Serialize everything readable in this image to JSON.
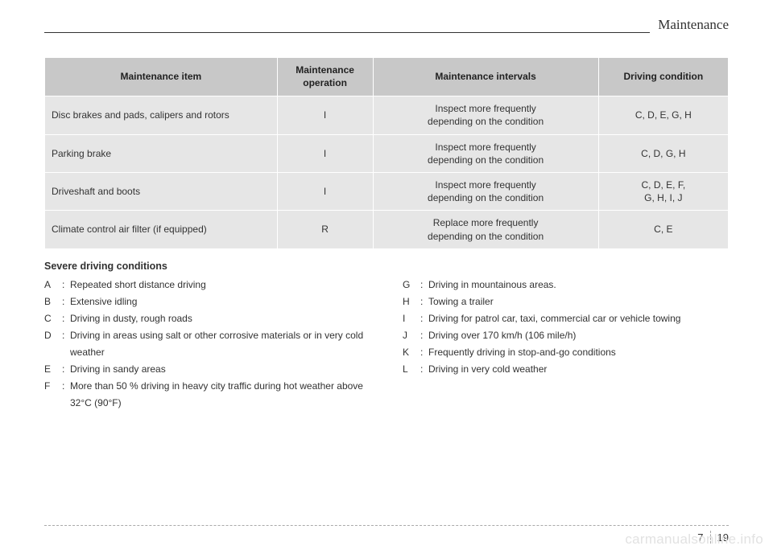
{
  "section_title": "Maintenance",
  "table": {
    "headers": {
      "item": "Maintenance item",
      "operation": "Maintenance\noperation",
      "intervals": "Maintenance intervals",
      "condition": "Driving condition"
    },
    "rows": [
      {
        "item": "Disc brakes and pads, calipers and rotors",
        "op": "I",
        "int": "Inspect more frequently\ndepending on the condition",
        "cond": "C, D, E, G, H"
      },
      {
        "item": "Parking brake",
        "op": "I",
        "int": "Inspect more frequently\ndepending on the condition",
        "cond": "C, D, G, H"
      },
      {
        "item": "Driveshaft and boots",
        "op": "I",
        "int": "Inspect more frequently\ndepending on the condition",
        "cond": "C, D, E, F,\nG, H, I, J"
      },
      {
        "item": "Climate control air filter (if equipped)",
        "op": "R",
        "int": "Replace more frequently\ndepending on the condition",
        "cond": "C, E"
      }
    ]
  },
  "conditions_title": "Severe driving conditions",
  "conditions_left": [
    {
      "key": "A",
      "text": "Repeated short distance driving"
    },
    {
      "key": "B",
      "text": "Extensive idling"
    },
    {
      "key": "C",
      "text": "Driving in dusty, rough roads"
    },
    {
      "key": "D",
      "text": "Driving in areas using salt or other corrosive materials or in very cold weather"
    },
    {
      "key": "E",
      "text": "Driving in sandy areas"
    },
    {
      "key": "F",
      "text": "More than 50 % driving in heavy city traffic during hot weather above 32°C (90°F)"
    }
  ],
  "conditions_right": [
    {
      "key": "G",
      "text": "Driving in mountainous areas."
    },
    {
      "key": "H",
      "text": "Towing a trailer"
    },
    {
      "key": "I",
      "text": "Driving for patrol car, taxi, commercial car or vehicle towing"
    },
    {
      "key": "J",
      "text": "Driving over 170 km/h (106 mile/h)"
    },
    {
      "key": "K",
      "text": "Frequently driving in stop-and-go conditions"
    },
    {
      "key": "L",
      "text": "Driving in very cold weather"
    }
  ],
  "page_left": "7",
  "page_right": "19",
  "watermark": "carmanualsonline.info"
}
